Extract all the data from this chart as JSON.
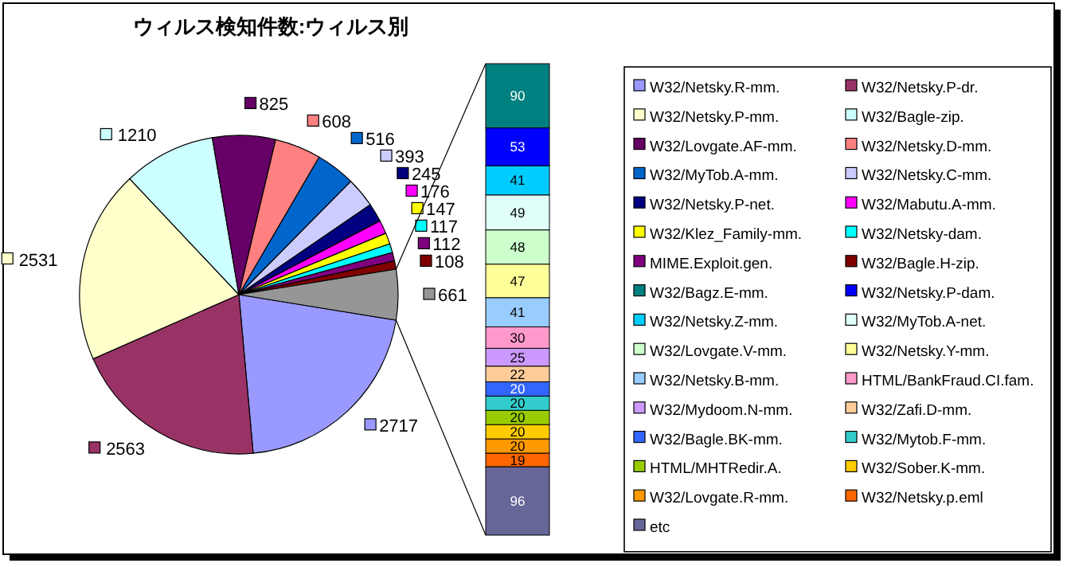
{
  "chart_data": [
    {
      "type": "pie",
      "title": "ウィルス検知件数:ウィルス別",
      "data_labels": true,
      "legend": "right",
      "categories": [
        "W32/Netsky.R-mm.",
        "W32/Netsky.P-dr.",
        "W32/Netsky.P-mm.",
        "W32/Bagle-zip.",
        "W32/Lovgate.AF-mm.",
        "W32/Netsky.D-mm.",
        "W32/MyTob.A-mm.",
        "W32/Netsky.C-mm.",
        "W32/Netsky.P-net.",
        "W32/Mabutu.A-mm.",
        "W32/Klez_Family-mm.",
        "W32/Netsky-dam.",
        "MIME.Exploit.gen.",
        "W32/Bagle.H-zip.",
        null
      ],
      "values": [
        2717,
        2563,
        2531,
        1210,
        825,
        608,
        516,
        393,
        245,
        176,
        147,
        117,
        112,
        108,
        661
      ],
      "colors": [
        "#9999ff",
        "#993366",
        "#ffffcc",
        "#ccffff",
        "#660066",
        "#ff8080",
        "#0066cc",
        "#ccccff",
        "#000080",
        "#ff00ff",
        "#ffff00",
        "#00ffff",
        "#800080",
        "#800000",
        "#969696"
      ]
    },
    {
      "type": "bar",
      "stacked": true,
      "data_labels": true,
      "legend": "right",
      "categories": [
        null
      ],
      "series": [
        {
          "name": "etc",
          "color": "#666699",
          "values": [
            96
          ]
        },
        {
          "name": "W32/Netsky.p.eml",
          "color": "#ff6600",
          "values": [
            19
          ]
        },
        {
          "name": "W32/Lovgate.R-mm.",
          "color": "#ff9900",
          "values": [
            20
          ]
        },
        {
          "name": "W32/Sober.K-mm.",
          "color": "#ffcc00",
          "values": [
            20
          ]
        },
        {
          "name": "HTML/MHTRedir.A.",
          "color": "#99cc00",
          "values": [
            20
          ]
        },
        {
          "name": "W32/Mytob.F-mm.",
          "color": "#33cccc",
          "values": [
            20
          ]
        },
        {
          "name": "W32/Bagle.BK-mm.",
          "color": "#3366ff",
          "values": [
            20
          ]
        },
        {
          "name": "W32/Zafi.D-mm.",
          "color": "#ffcc99",
          "values": [
            22
          ]
        },
        {
          "name": "W32/Mydoom.N-mm.",
          "color": "#cc99ff",
          "values": [
            25
          ]
        },
        {
          "name": "HTML/BankFraud.CI.fam.",
          "color": "#ff99cc",
          "values": [
            30
          ]
        },
        {
          "name": "W32/Netsky.B-mm.",
          "color": "#99ccff",
          "values": [
            41
          ]
        },
        {
          "name": "W32/Netsky.Y-mm.",
          "color": "#ffff99",
          "values": [
            47
          ]
        },
        {
          "name": "W32/Lovgate.V-mm.",
          "color": "#ccffcc",
          "values": [
            48
          ]
        },
        {
          "name": "W32/MyTob.A-net.",
          "color": "#e0fff8",
          "values": [
            49
          ]
        },
        {
          "name": "W32/Netsky.Z-mm.",
          "color": "#00ccff",
          "values": [
            41
          ]
        },
        {
          "name": "W32/Netsky.P-dam.",
          "color": "#0000ff",
          "values": [
            53
          ]
        },
        {
          "name": "W32/Bagz.E-mm.",
          "color": "#008080",
          "values": [
            90
          ]
        }
      ]
    }
  ]
}
